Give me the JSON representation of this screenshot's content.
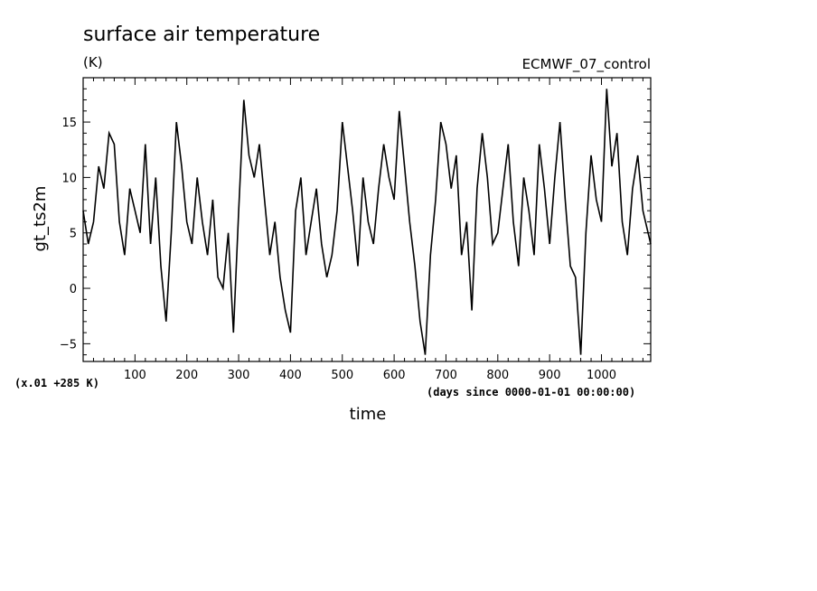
{
  "chart_data": {
    "type": "line",
    "title": "surface air temperature",
    "units": "(K)",
    "dataset": "ECMWF_07_control",
    "ylabel": "gt_ts2m",
    "xlabel": "time",
    "x_note": "(days since 0000-01-01 00:00:00)",
    "y_note": "(x.01 +285 K)",
    "xlim": [
      0,
      1095
    ],
    "ylim": [
      -6.6,
      19
    ],
    "grid": false,
    "x_ticks": [
      100,
      200,
      300,
      400,
      500,
      600,
      700,
      800,
      900,
      1000
    ],
    "x_tick_labels": [
      "100",
      "200",
      "300",
      "400",
      "500",
      "600",
      "700",
      "800",
      "900",
      "1000"
    ],
    "y_ticks": [
      -5,
      0,
      5,
      10,
      15
    ],
    "y_tick_labels": [
      "−5",
      "0",
      "5",
      "10",
      "15"
    ],
    "series": [
      {
        "name": "gt_ts2m",
        "color": "#000000",
        "x": [
          0,
          10,
          20,
          30,
          40,
          50,
          60,
          70,
          80,
          90,
          100,
          110,
          120,
          130,
          140,
          150,
          160,
          170,
          180,
          190,
          200,
          210,
          220,
          230,
          240,
          250,
          260,
          270,
          280,
          290,
          300,
          310,
          320,
          330,
          340,
          350,
          360,
          370,
          380,
          390,
          400,
          410,
          420,
          430,
          440,
          450,
          460,
          470,
          480,
          490,
          500,
          510,
          520,
          530,
          540,
          550,
          560,
          570,
          580,
          590,
          600,
          610,
          620,
          630,
          640,
          650,
          660,
          670,
          680,
          690,
          700,
          710,
          720,
          730,
          740,
          750,
          760,
          770,
          780,
          790,
          800,
          810,
          820,
          830,
          840,
          850,
          860,
          870,
          880,
          890,
          900,
          910,
          920,
          930,
          940,
          950,
          960,
          970,
          980,
          990,
          1000,
          1010,
          1020,
          1030,
          1040,
          1050,
          1060,
          1070,
          1080,
          1090,
          1095
        ],
        "values": [
          7,
          4,
          6,
          11,
          9,
          14,
          13,
          6,
          3,
          9,
          7,
          5,
          13,
          4,
          10,
          2,
          -3,
          5,
          15,
          11,
          6,
          4,
          10,
          6,
          3,
          8,
          1,
          0,
          5,
          -4,
          7,
          17,
          12,
          10,
          13,
          8,
          3,
          6,
          1,
          -2,
          -4,
          7,
          10,
          3,
          6,
          9,
          4,
          1,
          3,
          7,
          15,
          11,
          7,
          2,
          10,
          6,
          4,
          9,
          13,
          10,
          8,
          16,
          11,
          6,
          2,
          -3,
          -6,
          3,
          8,
          15,
          13,
          9,
          12,
          3,
          6,
          -2,
          9,
          14,
          10,
          4,
          5,
          9,
          13,
          6,
          2,
          10,
          7,
          3,
          13,
          9,
          4,
          10,
          15,
          8,
          2,
          1,
          -6,
          5,
          12,
          8,
          6,
          18,
          11,
          14,
          6,
          3,
          9,
          12,
          7,
          5,
          4
        ]
      }
    ]
  }
}
